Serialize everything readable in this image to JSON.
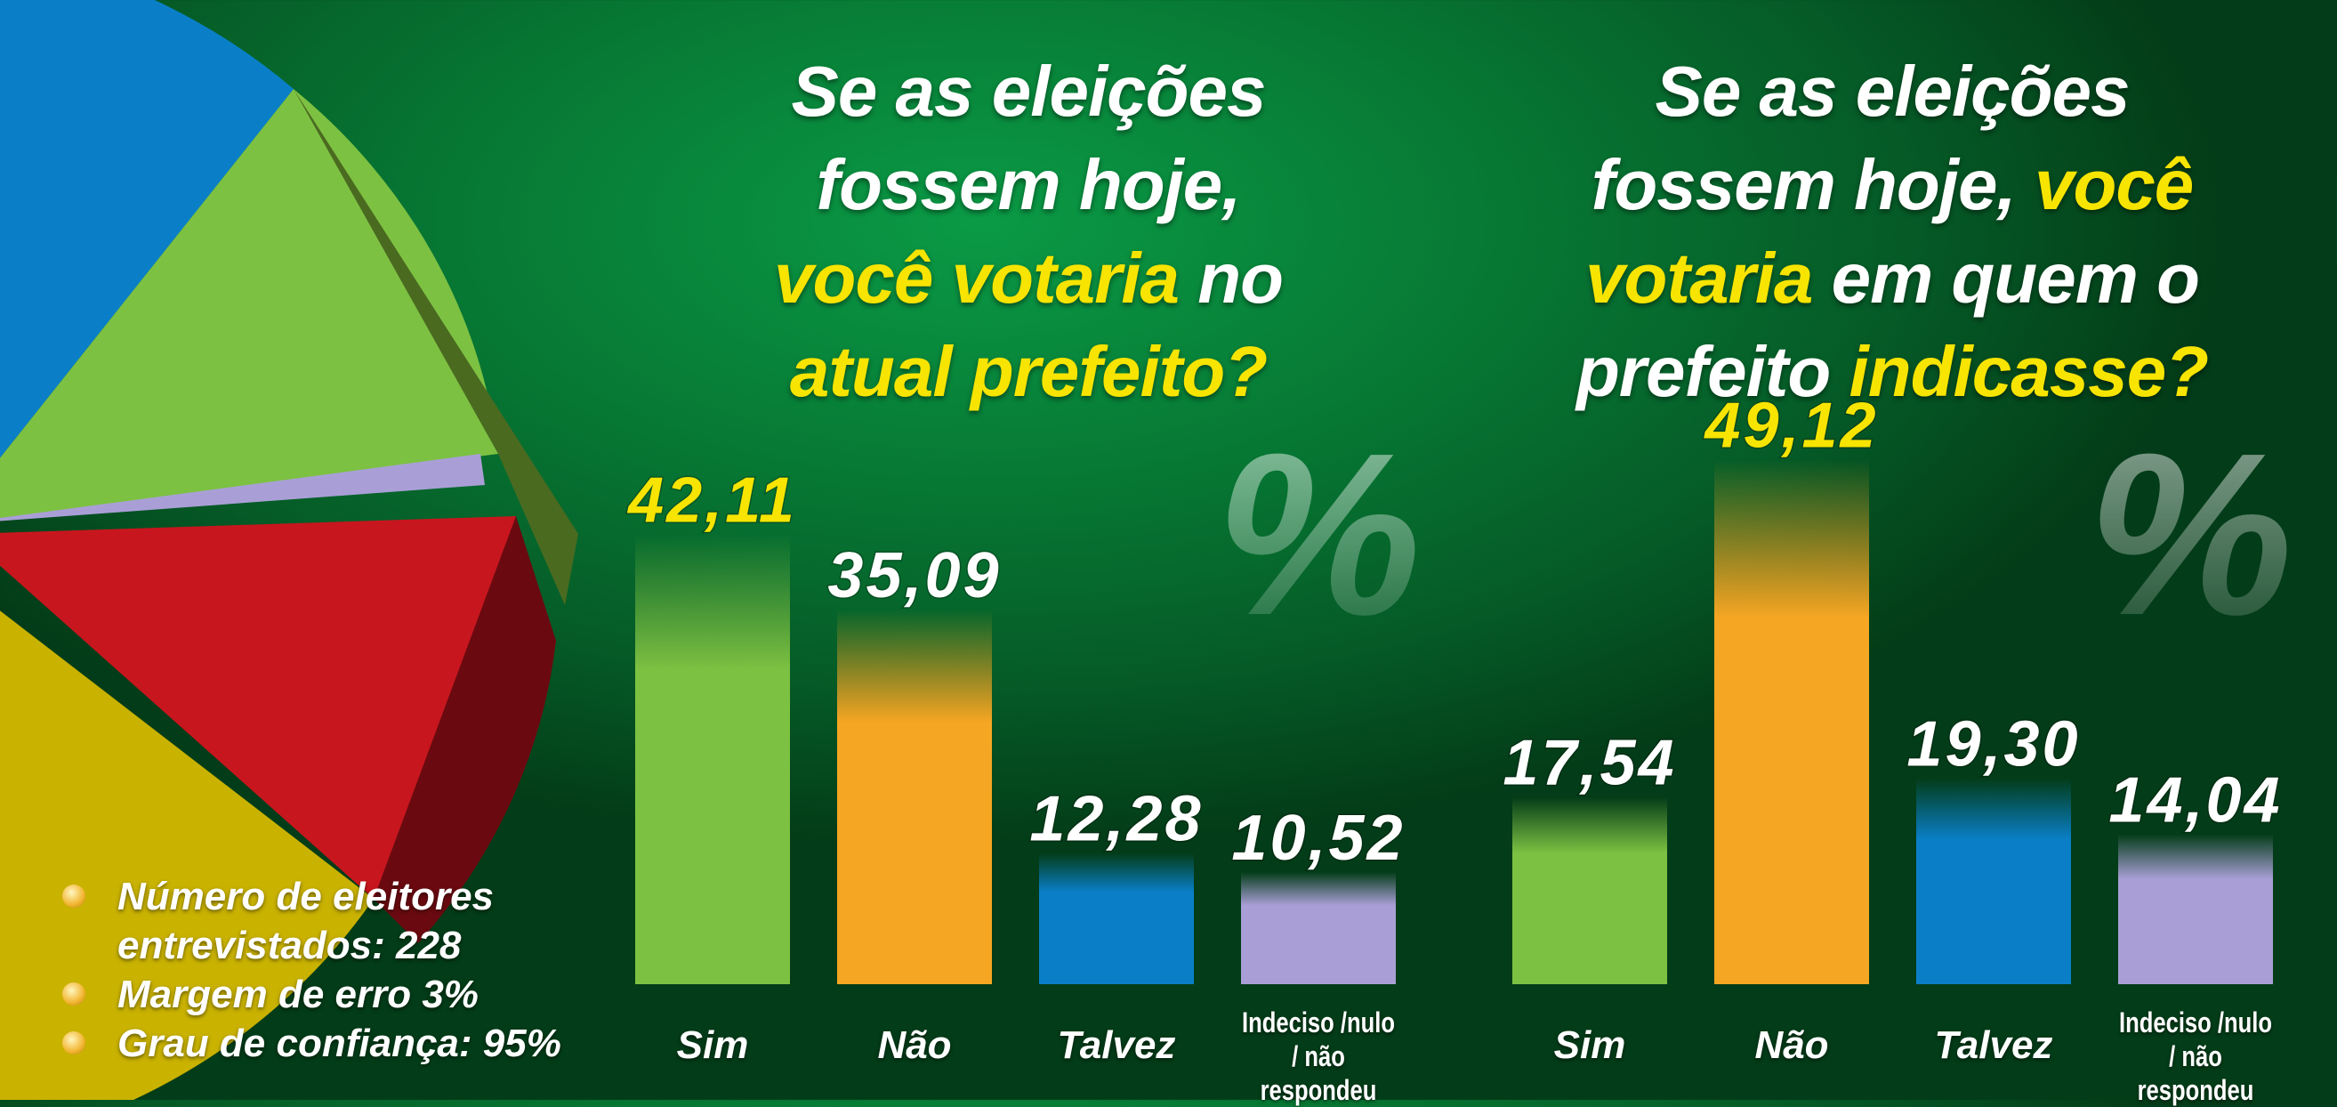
{
  "chart_data": [
    {
      "type": "bar",
      "title": [
        [
          {
            "text": "Se as eleições",
            "color": "#ffffff"
          }
        ],
        [
          {
            "text": "fossem hoje,",
            "color": "#ffffff"
          }
        ],
        [
          {
            "text": "você votaria",
            "color": "#f7e400"
          },
          {
            "text": " no",
            "color": "#ffffff"
          }
        ],
        [
          {
            "text": "atual prefeito?",
            "color": "#f7e400"
          }
        ]
      ],
      "categories": [
        "Sim",
        "Não",
        "Talvez",
        "Indeciso /nulo / não respondeu"
      ],
      "values": [
        42.11,
        35.09,
        12.28,
        10.52
      ],
      "value_labels": [
        "42,11",
        "35,09",
        "12,28",
        "10,52"
      ],
      "colors": [
        "#7dc142",
        "#f5a623",
        "#0a7fc8",
        "#a99fd6"
      ],
      "highlight_color": "#f7e400",
      "unit_symbol": "%"
    },
    {
      "type": "bar",
      "title": [
        [
          {
            "text": "Se as eleições",
            "color": "#ffffff"
          }
        ],
        [
          {
            "text": "fossem hoje, ",
            "color": "#ffffff"
          },
          {
            "text": "você",
            "color": "#f7e400"
          }
        ],
        [
          {
            "text": "votaria",
            "color": "#f7e400"
          },
          {
            "text": " em quem o",
            "color": "#ffffff"
          }
        ],
        [
          {
            "text": "prefeito ",
            "color": "#ffffff"
          },
          {
            "text": "indicasse?",
            "color": "#f7e400"
          }
        ]
      ],
      "categories": [
        "Sim",
        "Não",
        "Talvez",
        "Indeciso /nulo / não respondeu"
      ],
      "values": [
        17.54,
        49.12,
        19.3,
        14.04
      ],
      "value_labels": [
        "17,54",
        "49,12",
        "19,30",
        "14,04"
      ],
      "colors": [
        "#7dc142",
        "#f5a623",
        "#0a7fc8",
        "#a99fd6"
      ],
      "highlight_color": "#f7e400",
      "unit_symbol": "%"
    }
  ],
  "notes": [
    "Número de eleitores entrevistados: 228",
    "Margem de erro 3%",
    "Grau de confiança: 95%"
  ]
}
